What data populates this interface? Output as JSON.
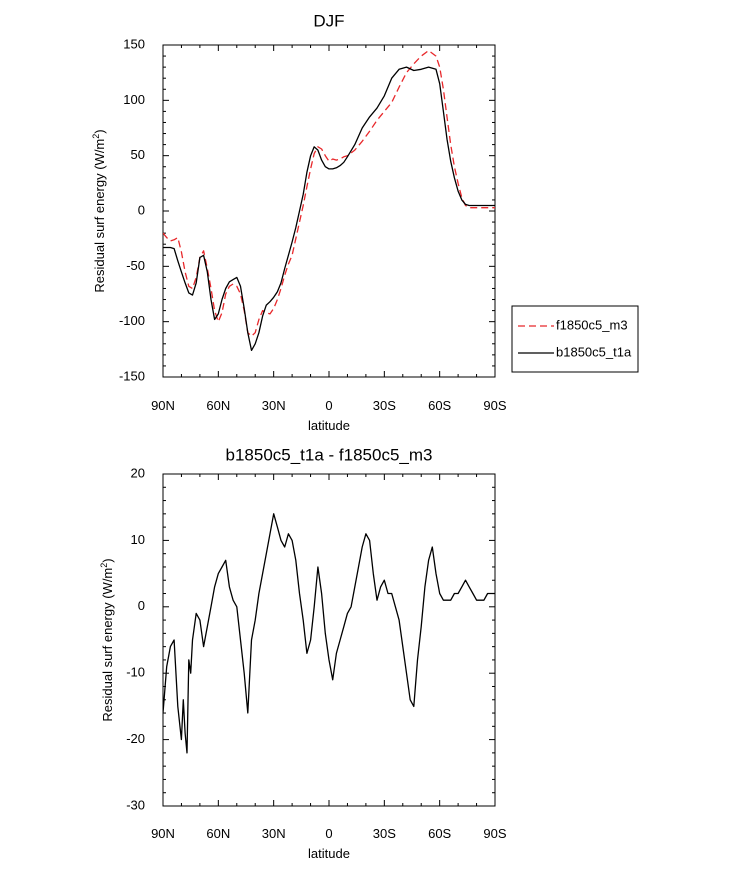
{
  "chart_data": [
    {
      "type": "line",
      "title": "DJF",
      "xlabel": "latitude",
      "ylabel_main": "Residual surf energy (W/m",
      "ylabel_sup": "2",
      "ylabel_close": ")",
      "xlim": [
        90,
        -90
      ],
      "ylim": [
        -150,
        150
      ],
      "xticks": [
        {
          "value": 90,
          "label": "90N"
        },
        {
          "value": 60,
          "label": "60N"
        },
        {
          "value": 30,
          "label": "30N"
        },
        {
          "value": 0,
          "label": "0"
        },
        {
          "value": -30,
          "label": "30S"
        },
        {
          "value": -60,
          "label": "60S"
        },
        {
          "value": -90,
          "label": "90S"
        }
      ],
      "yticks": [
        {
          "value": 150,
          "label": "150"
        },
        {
          "value": 100,
          "label": "100"
        },
        {
          "value": 50,
          "label": "50"
        },
        {
          "value": 0,
          "label": "0"
        },
        {
          "value": -50,
          "label": "-50"
        },
        {
          "value": -100,
          "label": "-100"
        },
        {
          "value": -150,
          "label": "-150"
        }
      ],
      "legend_position": "right",
      "series": [
        {
          "name": "f1850c5_m3",
          "color": "#e8282b",
          "dash": "dashed",
          "x": [
            90,
            88,
            86,
            84,
            82,
            80,
            78,
            76,
            74,
            72,
            70,
            68,
            66,
            64,
            62,
            60,
            58,
            56,
            54,
            52,
            50,
            48,
            46,
            44,
            42,
            40,
            38,
            36,
            34,
            32,
            30,
            28,
            26,
            24,
            22,
            20,
            18,
            16,
            14,
            12,
            10,
            8,
            6,
            4,
            2,
            0,
            -2,
            -4,
            -6,
            -8,
            -10,
            -14,
            -18,
            -22,
            -26,
            -30,
            -34,
            -38,
            -42,
            -46,
            -50,
            -54,
            -58,
            -60,
            -62,
            -64,
            -66,
            -68,
            -70,
            -72,
            -74,
            -76,
            -78,
            -80,
            -85,
            -90
          ],
          "y": [
            -20,
            -24,
            -27,
            -26,
            -24,
            -37,
            -55,
            -68,
            -70,
            -60,
            -42,
            -36,
            -52,
            -70,
            -90,
            -100,
            -92,
            -75,
            -68,
            -66,
            -68,
            -75,
            -90,
            -110,
            -113,
            -110,
            -98,
            -90,
            -92,
            -93,
            -88,
            -80,
            -70,
            -58,
            -48,
            -40,
            -25,
            -10,
            5,
            22,
            38,
            52,
            58,
            56,
            50,
            45,
            47,
            46,
            47,
            49,
            50,
            55,
            63,
            72,
            82,
            90,
            98,
            112,
            125,
            133,
            140,
            145,
            140,
            130,
            110,
            85,
            60,
            40,
            25,
            12,
            5,
            3,
            3,
            3,
            3,
            3
          ]
        },
        {
          "name": "b1850c5_t1a",
          "color": "#000000",
          "dash": "solid",
          "x": [
            90,
            88,
            86,
            84,
            82,
            80,
            78,
            76,
            74,
            72,
            70,
            68,
            66,
            64,
            62,
            60,
            58,
            56,
            54,
            52,
            50,
            48,
            46,
            44,
            42,
            40,
            38,
            36,
            34,
            32,
            30,
            28,
            26,
            24,
            22,
            20,
            18,
            16,
            14,
            12,
            10,
            8,
            6,
            4,
            2,
            0,
            -2,
            -4,
            -6,
            -8,
            -10,
            -14,
            -18,
            -22,
            -26,
            -30,
            -34,
            -38,
            -42,
            -46,
            -50,
            -54,
            -58,
            -60,
            -62,
            -64,
            -66,
            -68,
            -70,
            -72,
            -74,
            -76,
            -78,
            -80,
            -85,
            -90
          ],
          "y": [
            -33,
            -33,
            -33,
            -34,
            -45,
            -55,
            -65,
            -74,
            -76,
            -65,
            -42,
            -40,
            -55,
            -80,
            -98,
            -93,
            -80,
            -70,
            -64,
            -62,
            -60,
            -68,
            -88,
            -110,
            -126,
            -120,
            -110,
            -95,
            -85,
            -82,
            -78,
            -73,
            -65,
            -52,
            -40,
            -28,
            -15,
            0,
            15,
            35,
            50,
            58,
            55,
            46,
            40,
            38,
            38,
            39,
            41,
            44,
            49,
            60,
            75,
            85,
            93,
            104,
            120,
            128,
            130,
            127,
            128,
            130,
            128,
            115,
            90,
            65,
            45,
            30,
            18,
            10,
            6,
            5,
            5,
            5,
            5,
            5
          ]
        }
      ]
    },
    {
      "type": "line",
      "title": "b1850c5_t1a - f1850c5_m3",
      "xlabel": "latitude",
      "ylabel_main": "Residual surf energy (W/m",
      "ylabel_sup": "2",
      "ylabel_close": ")",
      "xlim": [
        90,
        -90
      ],
      "ylim": [
        -30,
        20
      ],
      "xticks": [
        {
          "value": 90,
          "label": "90N"
        },
        {
          "value": 60,
          "label": "60N"
        },
        {
          "value": 30,
          "label": "30N"
        },
        {
          "value": 0,
          "label": "0"
        },
        {
          "value": -30,
          "label": "30S"
        },
        {
          "value": -60,
          "label": "60S"
        },
        {
          "value": -90,
          "label": "90S"
        }
      ],
      "yticks": [
        {
          "value": 20,
          "label": "20"
        },
        {
          "value": 10,
          "label": "10"
        },
        {
          "value": 0,
          "label": "0"
        },
        {
          "value": -10,
          "label": "-10"
        },
        {
          "value": -20,
          "label": "-20"
        },
        {
          "value": -30,
          "label": "-30"
        }
      ],
      "series": [
        {
          "name": "b1850c5_t1a - f1850c5_m3",
          "color": "#000000",
          "dash": "solid",
          "x": [
            90,
            88,
            86,
            84,
            82,
            80,
            79,
            78,
            77,
            76,
            75,
            74,
            72,
            70,
            68,
            66,
            64,
            62,
            60,
            58,
            56,
            54,
            52,
            50,
            48,
            46,
            44,
            42,
            40,
            38,
            36,
            34,
            32,
            30,
            28,
            26,
            24,
            22,
            20,
            18,
            16,
            14,
            12,
            10,
            8,
            6,
            4,
            2,
            0,
            -2,
            -4,
            -6,
            -8,
            -10,
            -12,
            -14,
            -16,
            -18,
            -20,
            -22,
            -24,
            -26,
            -28,
            -30,
            -32,
            -34,
            -36,
            -38,
            -40,
            -42,
            -44,
            -46,
            -48,
            -50,
            -52,
            -54,
            -56,
            -58,
            -60,
            -62,
            -64,
            -66,
            -68,
            -70,
            -72,
            -74,
            -76,
            -78,
            -80,
            -82,
            -84,
            -86,
            -88,
            -90
          ],
          "y": [
            -16,
            -9,
            -6,
            -5,
            -15,
            -20,
            -14,
            -19,
            -22,
            -8,
            -10,
            -5,
            -1,
            -2,
            -6,
            -3,
            0,
            3,
            5,
            6,
            7,
            3,
            1,
            0,
            -5,
            -10,
            -16,
            -5,
            -2,
            2,
            5,
            8,
            11,
            14,
            12,
            10,
            9,
            11,
            10,
            7,
            2,
            -2,
            -7,
            -5,
            0,
            6,
            2,
            -4,
            -8,
            -11,
            -7,
            -5,
            -3,
            -1,
            0,
            3,
            6,
            9,
            11,
            10,
            5,
            1,
            3,
            4,
            2,
            2,
            0,
            -2,
            -6,
            -10,
            -14,
            -15,
            -8,
            -3,
            3,
            7,
            9,
            5,
            2,
            1,
            1,
            1,
            2,
            2,
            3,
            4,
            3,
            2,
            1,
            1,
            1,
            2,
            2,
            2
          ]
        }
      ]
    }
  ]
}
